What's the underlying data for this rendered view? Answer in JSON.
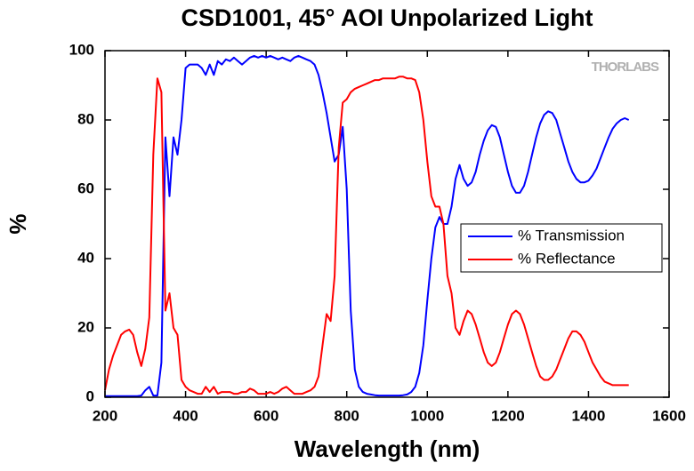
{
  "chart_data": {
    "type": "line",
    "title": "CSD1001, 45° AOI Unpolarized Light",
    "x_label": "Wavelength (nm)",
    "y_label": "%",
    "watermark": "THORLABS",
    "x": [
      200,
      210,
      220,
      230,
      240,
      250,
      260,
      270,
      280,
      290,
      300,
      310,
      320,
      330,
      340,
      350,
      360,
      370,
      380,
      390,
      400,
      410,
      420,
      430,
      440,
      450,
      460,
      470,
      480,
      490,
      500,
      510,
      520,
      530,
      540,
      550,
      560,
      570,
      580,
      590,
      600,
      610,
      620,
      630,
      640,
      650,
      660,
      670,
      680,
      690,
      700,
      710,
      720,
      730,
      740,
      750,
      760,
      770,
      780,
      790,
      800,
      810,
      820,
      830,
      840,
      850,
      860,
      870,
      880,
      890,
      900,
      910,
      920,
      930,
      940,
      950,
      960,
      970,
      980,
      990,
      1000,
      1010,
      1020,
      1030,
      1040,
      1050,
      1060,
      1070,
      1080,
      1090,
      1100,
      1110,
      1120,
      1130,
      1140,
      1150,
      1160,
      1170,
      1180,
      1190,
      1200,
      1210,
      1220,
      1230,
      1240,
      1250,
      1260,
      1270,
      1280,
      1290,
      1300,
      1310,
      1320,
      1330,
      1340,
      1350,
      1360,
      1370,
      1380,
      1390,
      1400,
      1410,
      1420,
      1430,
      1440,
      1450,
      1460,
      1470,
      1480,
      1490,
      1500
    ],
    "series": [
      {
        "name": "% Transmission",
        "color": "#0000ff",
        "values": [
          0.3,
          0.3,
          0.3,
          0.3,
          0.3,
          0.3,
          0.3,
          0.3,
          0.3,
          0.5,
          2,
          3,
          0.5,
          0.5,
          10,
          75,
          58,
          75,
          70,
          80,
          95,
          96,
          96,
          96,
          95,
          93,
          96,
          93,
          97,
          96,
          97.5,
          97,
          98,
          97,
          96,
          97,
          98,
          98.5,
          98,
          98.5,
          98,
          98.5,
          98,
          97.5,
          98,
          97.5,
          97,
          98,
          98.5,
          98,
          97.5,
          97,
          96,
          93,
          88,
          82,
          75,
          68,
          70,
          78,
          60,
          25,
          8,
          3,
          1.5,
          1,
          0.8,
          0.6,
          0.5,
          0.5,
          0.5,
          0.5,
          0.5,
          0.5,
          0.6,
          0.8,
          1.5,
          3,
          7,
          15,
          28,
          40,
          49,
          52,
          50,
          50,
          55,
          63,
          67,
          63,
          61,
          62,
          65,
          70,
          74,
          77,
          78.5,
          78,
          75,
          70,
          65,
          61,
          59,
          59,
          61,
          65,
          70,
          75,
          79,
          81.5,
          82.5,
          82,
          80,
          76,
          72,
          68,
          65,
          63,
          62,
          62,
          62.5,
          64,
          66,
          69,
          72,
          75,
          77.5,
          79,
          80,
          80.5,
          80
        ]
      },
      {
        "name": "% Reflectance",
        "color": "#ff0000",
        "values": [
          2,
          8,
          12,
          15,
          18,
          19,
          19.5,
          18,
          13,
          9,
          14,
          23,
          70,
          92,
          88,
          25,
          30,
          20,
          18,
          5,
          3,
          2,
          1.5,
          1,
          1,
          3,
          1.5,
          3,
          1,
          1.5,
          1.5,
          1.5,
          1,
          1,
          1.5,
          1.5,
          2.5,
          2,
          1,
          1,
          1,
          1.5,
          1,
          1.5,
          2.5,
          3,
          2,
          1,
          1,
          1,
          1.5,
          2,
          3,
          6,
          15,
          24,
          22,
          35,
          72,
          85,
          86,
          88,
          89,
          89.5,
          90,
          90.5,
          91,
          91.5,
          91.5,
          92,
          92,
          92,
          92,
          92.5,
          92.5,
          92,
          92,
          91.5,
          88,
          80,
          68,
          58,
          55,
          55,
          50,
          35,
          30,
          20,
          18,
          22,
          25,
          24,
          21,
          17,
          13,
          10,
          9,
          10,
          13,
          17,
          21,
          24,
          25,
          24,
          21,
          17,
          13,
          9,
          6,
          5,
          5,
          6,
          8,
          11,
          14,
          17,
          19,
          19,
          18,
          16,
          13,
          10,
          8,
          6,
          4.5,
          4,
          3.5,
          3.5,
          3.5,
          3.5,
          3.5
        ]
      }
    ],
    "xlim": [
      200,
      1600
    ],
    "xticks": [
      200,
      400,
      600,
      800,
      1000,
      1200,
      1400,
      1600
    ],
    "ylim": [
      0,
      100
    ],
    "yticks": [
      0,
      20,
      40,
      60,
      80,
      100
    ],
    "legend": "right"
  }
}
